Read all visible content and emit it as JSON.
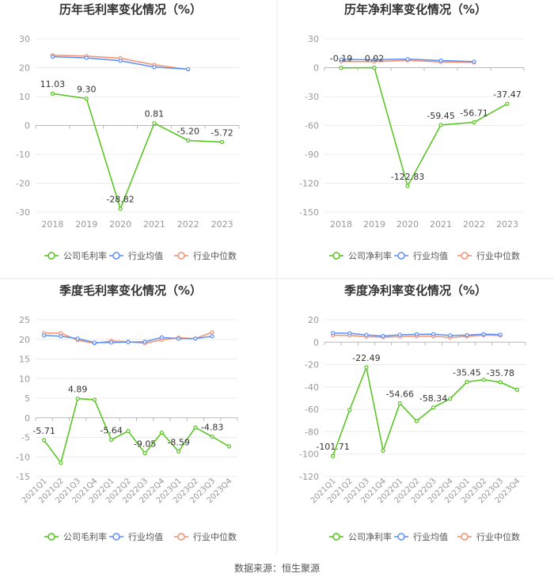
{
  "source_note": "数据来源：恒生聚源",
  "colors": {
    "company": "#52c41a",
    "industry_avg": "#5b8ff9",
    "industry_median": "#f4906e"
  },
  "chart_data": [
    {
      "type": "line",
      "title": "历年毛利率变化情况（%）",
      "categories": [
        "2018",
        "2019",
        "2020",
        "2021",
        "2022",
        "2023"
      ],
      "ylim": [
        -30,
        30
      ],
      "yticks": [
        "30",
        "20",
        "10",
        "0",
        "-10",
        "-20",
        "-30"
      ],
      "legend": [
        "公司毛利率",
        "行业均值",
        "行业中位数"
      ],
      "series": [
        {
          "name": "公司毛利率",
          "values": [
            11.03,
            9.3,
            -28.82,
            0.81,
            -5.2,
            -5.72
          ],
          "labels": [
            "11.03",
            "9.30",
            "-28.82",
            "0.81",
            "-5.20",
            "-5.72"
          ]
        },
        {
          "name": "行业均值",
          "values": [
            23.8,
            23.4,
            22.4,
            20.2,
            19.5,
            null
          ]
        },
        {
          "name": "行业中位数",
          "values": [
            24.3,
            24.0,
            23.3,
            21.0,
            19.4,
            null
          ]
        }
      ]
    },
    {
      "type": "line",
      "title": "历年净利率变化情况（%）",
      "categories": [
        "2018",
        "2019",
        "2020",
        "2021",
        "2022",
        "2023"
      ],
      "ylim": [
        -150,
        30
      ],
      "yticks": [
        "30",
        "0",
        "-30",
        "-60",
        "-90",
        "-120",
        "-150"
      ],
      "legend": [
        "公司净利率",
        "行业均值",
        "行业中位数"
      ],
      "series": [
        {
          "name": "公司净利率",
          "values": [
            -0.19,
            0.02,
            -122.83,
            -59.45,
            -56.71,
            -37.47
          ],
          "labels": [
            "-0.19",
            "0.02",
            "-122.83",
            "-59.45",
            "-56.71",
            "-37.47"
          ]
        },
        {
          "name": "行业均值",
          "values": [
            8.5,
            8.2,
            8.9,
            7.4,
            6.3,
            null
          ]
        },
        {
          "name": "行业中位数",
          "values": [
            6.5,
            6.3,
            7.6,
            6.0,
            5.5,
            null
          ]
        }
      ]
    },
    {
      "type": "line",
      "title": "季度毛利率变化情况（%）",
      "categories": [
        "2021Q1",
        "2021Q2",
        "2021Q3",
        "2021Q4",
        "2022Q1",
        "2022Q2",
        "2022Q3",
        "2022Q4",
        "2023Q1",
        "2023Q2",
        "2023Q3",
        "2023Q4"
      ],
      "ylim": [
        -15,
        25
      ],
      "yticks": [
        "25",
        "20",
        "15",
        "10",
        "5",
        "0",
        "-5",
        "-10",
        "-15"
      ],
      "legend": [
        "公司毛利率",
        "行业均值",
        "行业中位数"
      ],
      "series": [
        {
          "name": "公司毛利率",
          "values": [
            -5.71,
            -11.5,
            4.89,
            4.6,
            -5.64,
            -3.4,
            -9.05,
            -3.8,
            -8.59,
            -2.5,
            -4.83,
            -7.3
          ],
          "labels": [
            "-5.71",
            "",
            "4.89",
            "",
            "-5.64",
            "",
            "-9.05",
            "",
            "-8.59",
            "",
            "-4.83",
            ""
          ]
        },
        {
          "name": "行业均值",
          "values": [
            21.0,
            20.8,
            20.2,
            19.2,
            19.2,
            19.3,
            19.4,
            20.5,
            20.2,
            20.2,
            20.8,
            null
          ]
        },
        {
          "name": "行业中位数",
          "values": [
            21.6,
            21.6,
            19.8,
            19.0,
            19.6,
            19.4,
            19.0,
            19.9,
            20.4,
            20.2,
            21.8,
            null
          ]
        }
      ]
    },
    {
      "type": "line",
      "title": "季度净利率变化情况（%）",
      "categories": [
        "2021Q1",
        "2021Q2",
        "2021Q3",
        "2021Q4",
        "2022Q1",
        "2022Q2",
        "2022Q3",
        "2022Q4",
        "2023Q1",
        "2023Q2",
        "2023Q3",
        "2023Q4"
      ],
      "ylim": [
        -120,
        20
      ],
      "yticks": [
        "20",
        "0",
        "-20",
        "-40",
        "-60",
        "-80",
        "-100",
        "-120"
      ],
      "legend": [
        "公司净利率",
        "行业均值",
        "行业中位数"
      ],
      "series": [
        {
          "name": "公司净利率",
          "values": [
            -101.71,
            -60.5,
            -22.49,
            -97.0,
            -54.66,
            -70.5,
            -58.34,
            -50.5,
            -35.45,
            -33.5,
            -35.78,
            -42.5
          ],
          "labels": [
            "-101.71",
            "",
            "-22.49",
            "",
            "-54.66",
            "",
            "-58.34",
            "",
            "-35.45",
            "",
            "-35.78",
            ""
          ]
        },
        {
          "name": "行业均值",
          "values": [
            8.2,
            8.0,
            6.5,
            5.5,
            6.6,
            7.0,
            7.2,
            6.0,
            6.3,
            7.2,
            6.8,
            null
          ]
        },
        {
          "name": "行业中位数",
          "values": [
            6.2,
            6.0,
            5.0,
            4.5,
            5.0,
            5.4,
            5.4,
            4.2,
            5.2,
            6.3,
            6.0,
            null
          ]
        }
      ]
    }
  ]
}
